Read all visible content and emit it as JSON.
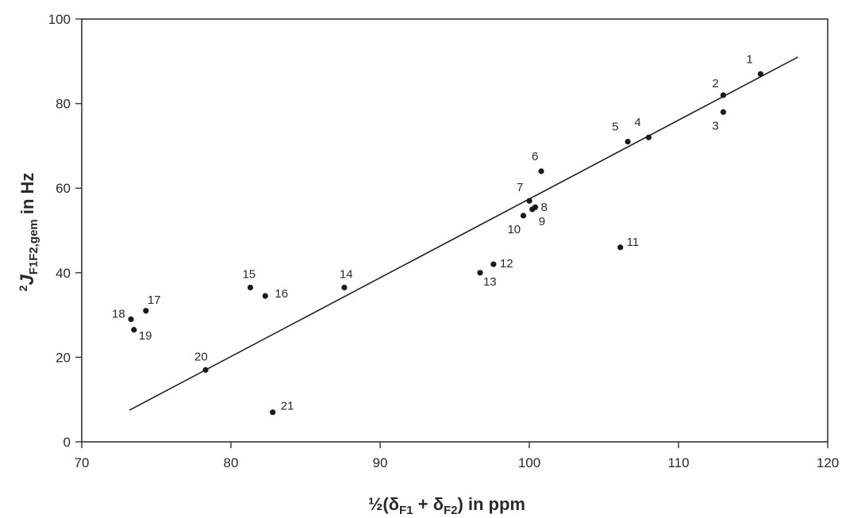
{
  "chart_data": {
    "type": "scatter",
    "xlabel_parts": [
      "½(δ",
      "F1",
      " + δ",
      "F2",
      ") in ppm"
    ],
    "ylabel_parts": [
      "2",
      "J",
      "F1F2,gem",
      " in Hz"
    ],
    "xlim": [
      70,
      120
    ],
    "ylim": [
      0,
      100
    ],
    "x_ticks": [
      70,
      80,
      90,
      100,
      110,
      120
    ],
    "y_ticks": [
      0,
      20,
      40,
      60,
      80,
      100
    ],
    "grid": false,
    "points": [
      {
        "label": "1",
        "x": 115.5,
        "y": 87
      },
      {
        "label": "2",
        "x": 113.0,
        "y": 82
      },
      {
        "label": "3",
        "x": 113.0,
        "y": 78
      },
      {
        "label": "4",
        "x": 108.0,
        "y": 72
      },
      {
        "label": "5",
        "x": 106.6,
        "y": 71
      },
      {
        "label": "6",
        "x": 100.8,
        "y": 64
      },
      {
        "label": "7",
        "x": 100.0,
        "y": 57
      },
      {
        "label": "8",
        "x": 100.4,
        "y": 55.5
      },
      {
        "label": "9",
        "x": 100.2,
        "y": 55
      },
      {
        "label": "10",
        "x": 99.6,
        "y": 53.5
      },
      {
        "label": "11",
        "x": 106.1,
        "y": 46
      },
      {
        "label": "12",
        "x": 97.6,
        "y": 42
      },
      {
        "label": "13",
        "x": 96.7,
        "y": 40
      },
      {
        "label": "14",
        "x": 87.6,
        "y": 36.5
      },
      {
        "label": "15",
        "x": 81.3,
        "y": 36.5
      },
      {
        "label": "16",
        "x": 82.3,
        "y": 34.5
      },
      {
        "label": "17",
        "x": 74.3,
        "y": 31
      },
      {
        "label": "18",
        "x": 73.3,
        "y": 29
      },
      {
        "label": "19",
        "x": 73.5,
        "y": 26.5
      },
      {
        "label": "20",
        "x": 78.3,
        "y": 17
      },
      {
        "label": "21",
        "x": 82.8,
        "y": 7
      }
    ],
    "trend_line": {
      "x": [
        73.2,
        118.0
      ],
      "y": [
        7.5,
        91
      ]
    }
  }
}
